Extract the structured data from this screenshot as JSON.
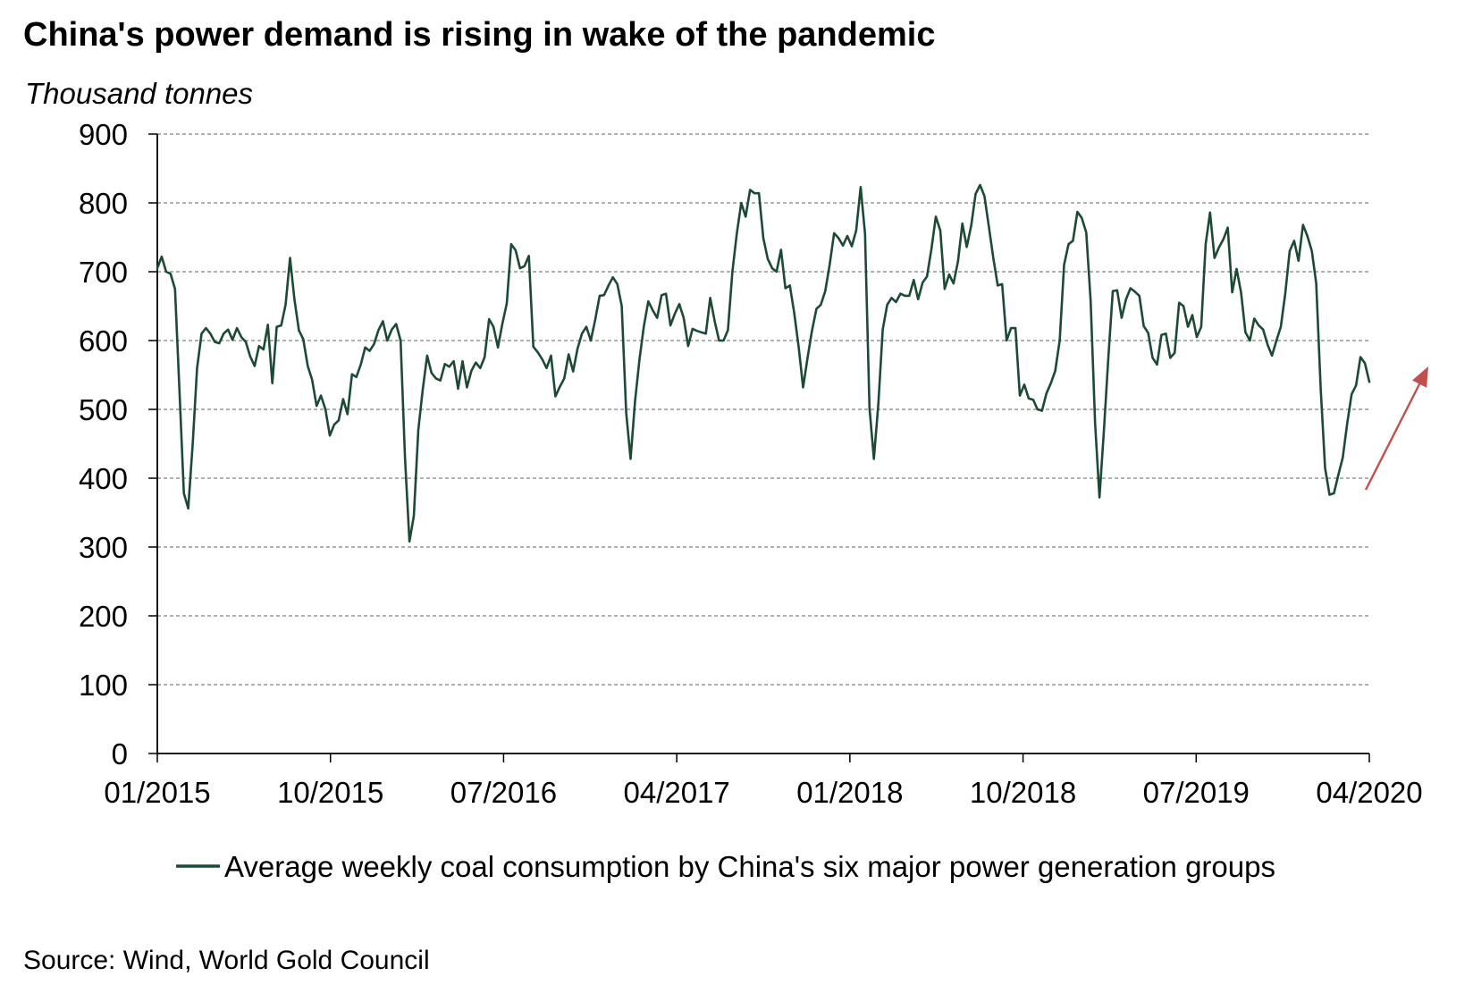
{
  "header": {
    "title": "China's power demand is rising in wake of the pandemic",
    "unit_label": "Thousand tonnes"
  },
  "footer": {
    "source": "Source: Wind, World Gold Council"
  },
  "colors": {
    "series": "#1c4a35",
    "arrow": "#c0504d",
    "grid": "#808080",
    "axis": "#000000"
  },
  "chart_data": {
    "type": "line",
    "ylim": [
      0,
      900
    ],
    "yticks": [
      0,
      100,
      200,
      300,
      400,
      500,
      600,
      700,
      800,
      900
    ],
    "xlim": [
      "2015-01",
      "2020-04"
    ],
    "xtick_labels": [
      "01/2015",
      "10/2015",
      "07/2016",
      "04/2017",
      "01/2018",
      "10/2018",
      "07/2019",
      "04/2020"
    ],
    "grid": "horizontal dashed",
    "legend_position": "bottom",
    "series": [
      {
        "name": "Average weekly coal consumption by China's six major power generation groups",
        "x_start": "2015-01",
        "sampling": "weekly",
        "values": [
          705,
          722,
          700,
          697,
          675,
          530,
          378,
          356,
          450,
          560,
          610,
          618,
          610,
          598,
          596,
          610,
          616,
          601,
          618,
          605,
          598,
          577,
          563,
          592,
          587,
          623,
          538,
          620,
          622,
          652,
          720,
          660,
          615,
          602,
          563,
          543,
          505,
          520,
          500,
          462,
          478,
          484,
          515,
          493,
          551,
          547,
          565,
          590,
          585,
          595,
          615,
          628,
          600,
          616,
          624,
          600,
          430,
          308,
          345,
          470,
          528,
          578,
          553,
          545,
          542,
          566,
          562,
          570,
          530,
          570,
          532,
          556,
          568,
          560,
          576,
          631,
          620,
          590,
          624,
          654,
          740,
          731,
          705,
          708,
          723,
          591,
          583,
          573,
          560,
          578,
          519,
          533,
          545,
          580,
          555,
          588,
          610,
          620,
          600,
          630,
          665,
          666,
          680,
          692,
          682,
          650,
          495,
          428,
          512,
          572,
          621,
          657,
          644,
          633,
          666,
          668,
          622,
          639,
          653,
          633,
          592,
          617,
          614,
          612,
          610,
          662,
          628,
          600,
          600,
          615,
          700,
          755,
          800,
          780,
          819,
          814,
          814,
          749,
          719,
          705,
          700,
          732,
          676,
          680,
          640,
          590,
          532,
          575,
          614,
          646,
          652,
          672,
          710,
          756,
          749,
          738,
          752,
          737,
          760,
          823,
          755,
          502,
          428,
          508,
          616,
          652,
          662,
          656,
          668,
          665,
          665,
          688,
          660,
          684,
          693,
          733,
          780,
          760,
          675,
          696,
          683,
          715,
          770,
          736,
          767,
          813,
          826,
          810,
          765,
          720,
          680,
          682,
          600,
          618,
          618,
          520,
          536,
          516,
          514,
          500,
          498,
          523,
          538,
          556,
          600,
          710,
          740,
          745,
          787,
          778,
          757,
          658,
          480,
          372,
          470,
          575,
          672,
          673,
          633,
          660,
          676,
          671,
          665,
          621,
          611,
          575,
          565,
          608,
          610,
          575,
          582,
          655,
          650,
          620,
          637,
          605,
          620,
          740,
          786,
          720,
          735,
          747,
          764,
          670,
          704,
          670,
          612,
          600,
          632,
          622,
          616,
          594,
          578,
          600,
          620,
          669,
          730,
          745,
          716,
          768,
          752,
          730,
          683,
          530,
          415,
          376,
          378,
          405,
          430,
          480,
          522,
          535,
          576,
          567,
          540
        ]
      }
    ],
    "annotations": [
      {
        "type": "arrow",
        "direction": "up-right",
        "meaning": "rising trend"
      }
    ]
  }
}
